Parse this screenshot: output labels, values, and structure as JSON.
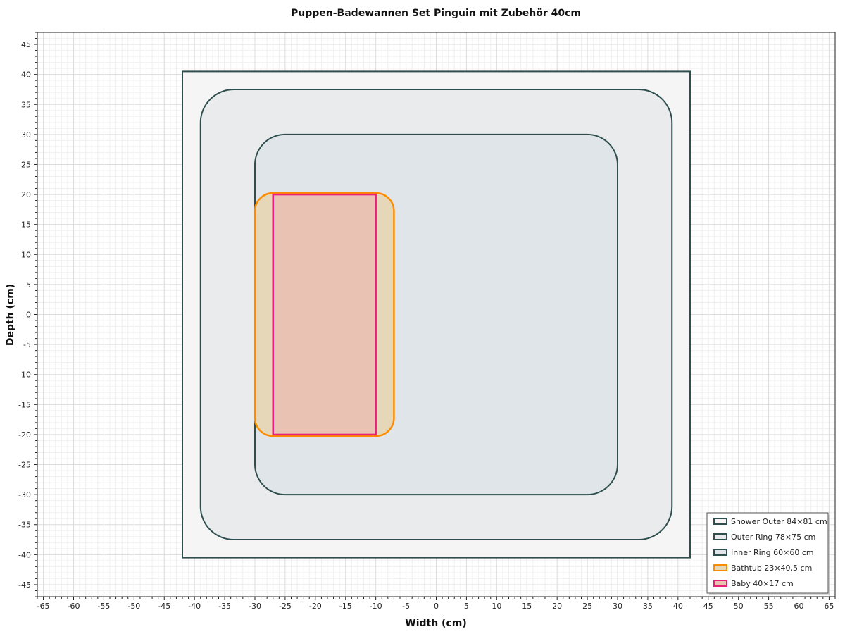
{
  "chart_data": {
    "type": "rectangles",
    "title": "Puppen-Badewannen Set Pinguin mit Zubehör 40cm",
    "xlabel": "Width (cm)",
    "ylabel": "Depth (cm)",
    "xlim": [
      -66,
      66
    ],
    "ylim": [
      -47,
      47
    ],
    "xticks": [
      -65,
      -60,
      -55,
      -50,
      -45,
      -40,
      -35,
      -30,
      -25,
      -20,
      -15,
      -10,
      -5,
      0,
      5,
      10,
      15,
      20,
      25,
      30,
      35,
      40,
      45,
      50,
      55,
      60,
      65
    ],
    "yticks": [
      -45,
      -40,
      -35,
      -30,
      -25,
      -20,
      -15,
      -10,
      -5,
      0,
      5,
      10,
      15,
      20,
      25,
      30,
      35,
      40,
      45
    ],
    "grid": true,
    "legend_position": "bottom-right",
    "shapes": [
      {
        "name": "Shower Outer 84×81 cm",
        "x_min": -42,
        "x_max": 42,
        "y_min": -40.5,
        "y_max": 40.5,
        "corner_radius": 0,
        "stroke": "#2f4f4f",
        "fill": "#f5f5f5",
        "fill_opacity": 1
      },
      {
        "name": "Outer Ring 78×75 cm",
        "x_min": -39,
        "x_max": 39,
        "y_min": -37.5,
        "y_max": 37.5,
        "corner_radius": 5.5,
        "stroke": "#2f4f4f",
        "fill": "#e9ebed",
        "fill_opacity": 1
      },
      {
        "name": "Inner Ring 60×60 cm",
        "x_min": -30,
        "x_max": 30,
        "y_min": -30,
        "y_max": 30,
        "corner_radius": 5,
        "stroke": "#2f4f4f",
        "fill": "#dfe5e9",
        "fill_opacity": 1
      },
      {
        "name": "Bathtub 23×40,5 cm",
        "x_min": -30,
        "x_max": -7,
        "y_min": -20.25,
        "y_max": 20.25,
        "corner_radius": 3,
        "stroke": "#ff8c00",
        "fill": "#e5d7b7",
        "fill_opacity": 1
      },
      {
        "name": "Baby 40×17 cm",
        "x_min": -27,
        "x_max": -10,
        "y_min": -20,
        "y_max": 20,
        "corner_radius": 0,
        "stroke": "#e8207a",
        "fill": "#e9c2b4",
        "fill_opacity": 1
      }
    ]
  }
}
